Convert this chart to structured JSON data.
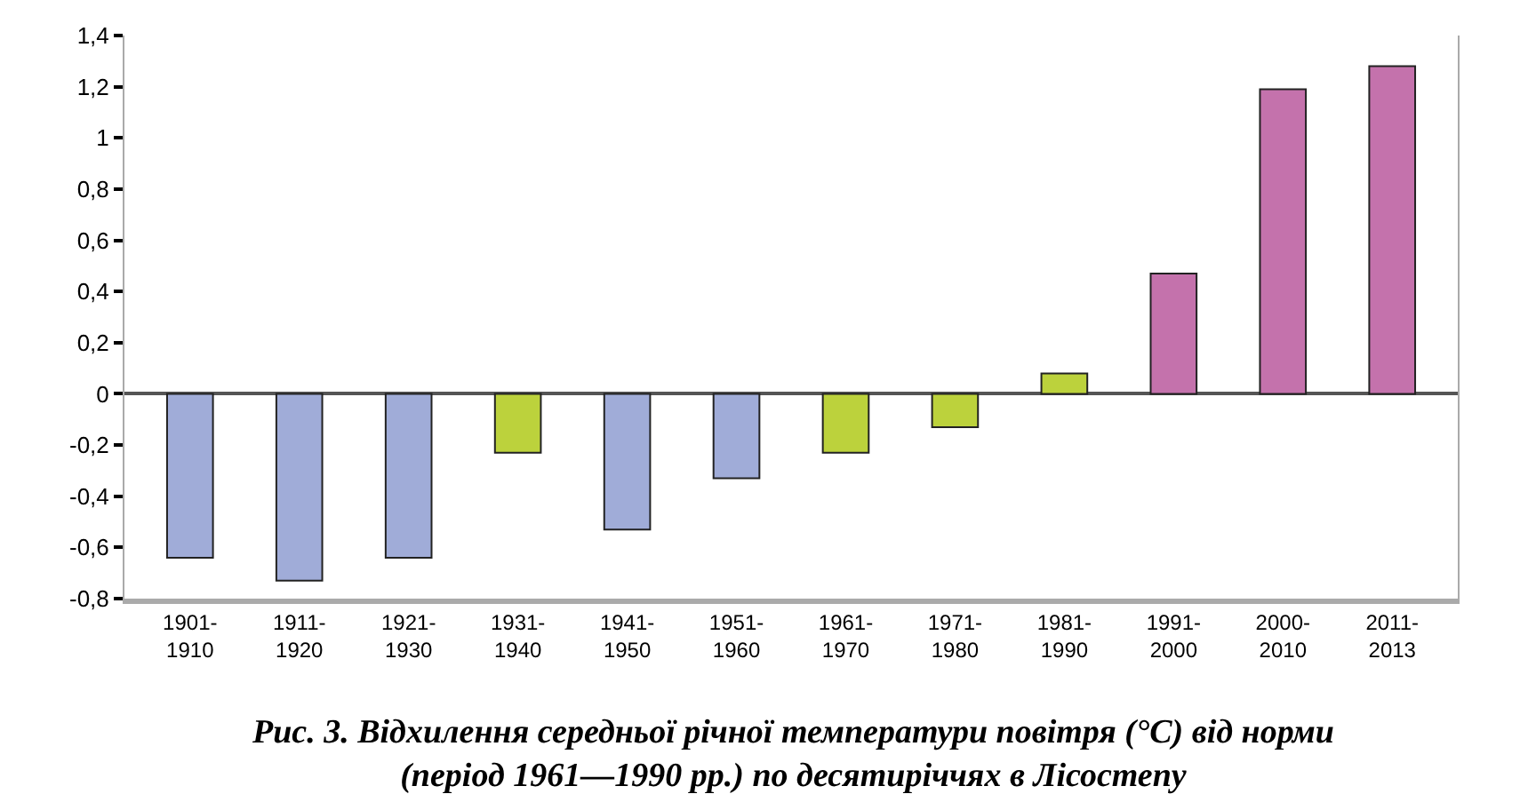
{
  "chart_data": {
    "type": "bar",
    "title": "Рис. 3. Відхилення середньої річної температури повітря (°С) від норми\n(період 1961—1990 рр.) по десятиріччях в Лісостепу",
    "categories": [
      "1901-\n1910",
      "1911-\n1920",
      "1921-\n1930",
      "1931-\n1940",
      "1941-\n1950",
      "1951-\n1960",
      "1961-\n1970",
      "1971-\n1980",
      "1981-\n1990",
      "1991-\n2000",
      "2000-\n2010",
      "2011-\n2013"
    ],
    "values": [
      -0.64,
      -0.73,
      -0.64,
      -0.23,
      -0.53,
      -0.33,
      -0.23,
      -0.13,
      0.08,
      0.47,
      1.19,
      1.28
    ],
    "colors": [
      "#a0acd8",
      "#a0acd8",
      "#a0acd8",
      "#bcd23c",
      "#a0acd8",
      "#a0acd8",
      "#bcd23c",
      "#bcd23c",
      "#bcd23c",
      "#c472ac",
      "#c472ac",
      "#c472ac"
    ],
    "ylim": [
      -0.8,
      1.4
    ],
    "yticks": [
      {
        "value": 1.4,
        "label": "1,4"
      },
      {
        "value": 1.2,
        "label": "1,2"
      },
      1,
      {
        "value": 0.8,
        "label": "0,8"
      },
      {
        "value": 0.6,
        "label": "0,6"
      },
      {
        "value": 0.4,
        "label": "0,4"
      },
      {
        "value": 0.2,
        "label": "0,2"
      },
      0,
      {
        "value": -0.2,
        "label": "-0,2"
      },
      {
        "value": -0.4,
        "label": "-0,4"
      },
      {
        "value": -0.6,
        "label": "-0,6"
      },
      {
        "value": -0.8,
        "label": "-0,8"
      }
    ],
    "legend": false
  }
}
